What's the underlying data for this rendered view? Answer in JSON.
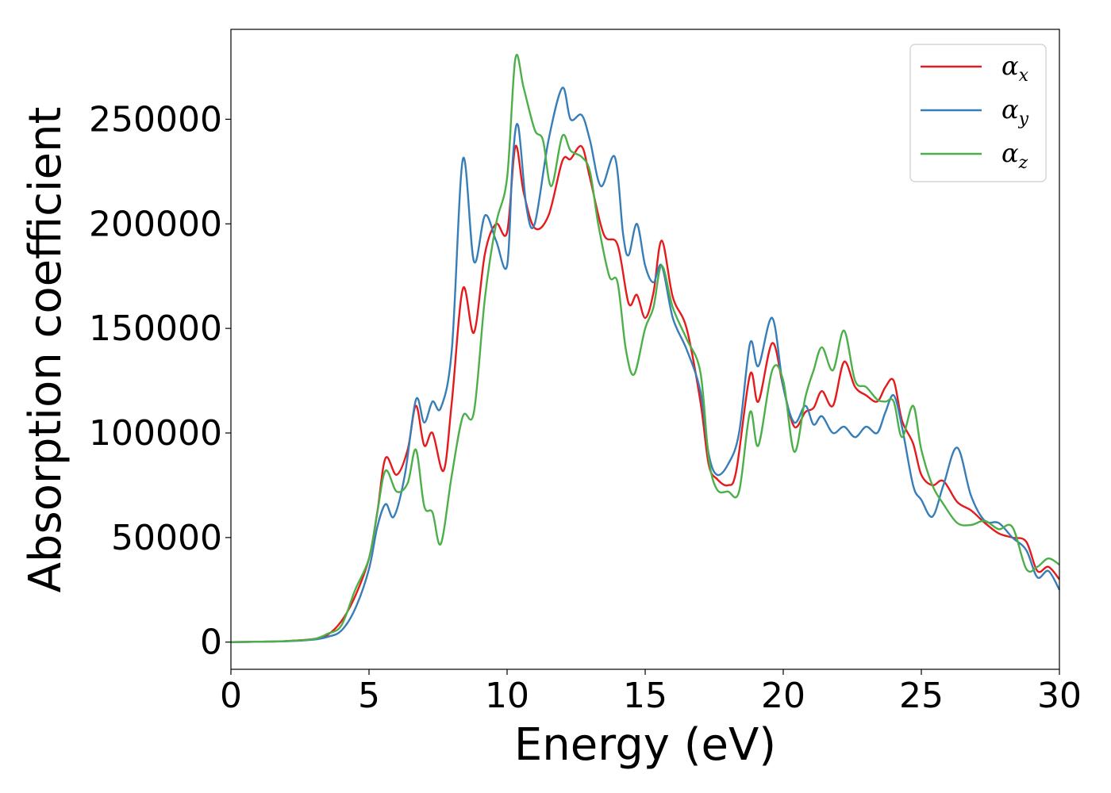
{
  "chart_data": {
    "type": "line",
    "xlabel": "Energy (eV)",
    "ylabel": "Absorption coefficient",
    "xlim": [
      0,
      30
    ],
    "ylim": [
      -13000,
      293000
    ],
    "xticks": [
      0,
      5,
      10,
      15,
      20,
      25,
      30
    ],
    "yticks": [
      0,
      50000,
      100000,
      150000,
      200000,
      250000
    ],
    "grid": false,
    "legend_position": "top-right",
    "series": [
      {
        "name": "α_x",
        "base": "α",
        "sub": "x",
        "color": "#e41a1c",
        "x": [
          0,
          1,
          2,
          3,
          3.5,
          4,
          4.5,
          5,
          5.3,
          5.6,
          6,
          6.4,
          6.7,
          7,
          7.3,
          7.7,
          8,
          8.4,
          8.8,
          9.2,
          9.6,
          10,
          10.3,
          10.6,
          11,
          11.5,
          12,
          12.3,
          12.7,
          13,
          13.5,
          14,
          14.4,
          14.7,
          15,
          15.3,
          15.6,
          16,
          16.5,
          17,
          17.3,
          17.6,
          18,
          18.3,
          18.8,
          19.1,
          19.6,
          20,
          20.4,
          20.8,
          21.1,
          21.4,
          21.8,
          22.2,
          22.6,
          23,
          23.4,
          23.7,
          24,
          24.3,
          24.7,
          25,
          25.4,
          25.8,
          26.3,
          26.8,
          27.3,
          27.8,
          28.3,
          28.8,
          29.2,
          29.6,
          30
        ],
        "y": [
          0,
          200,
          500,
          1500,
          3500,
          10000,
          22000,
          40000,
          62000,
          88000,
          80000,
          92000,
          113000,
          94000,
          100000,
          82000,
          115000,
          169000,
          148000,
          186000,
          200000,
          196000,
          237000,
          215000,
          198000,
          204000,
          230000,
          231000,
          237000,
          222000,
          195000,
          190000,
          162000,
          166000,
          155000,
          167000,
          192000,
          165000,
          150000,
          115000,
          85000,
          78000,
          75000,
          82000,
          128000,
          115000,
          143000,
          122000,
          103000,
          110000,
          112000,
          120000,
          113000,
          134000,
          122000,
          118000,
          115000,
          122000,
          125000,
          106000,
          95000,
          80000,
          75000,
          77000,
          67000,
          63000,
          57000,
          52000,
          50000,
          48000,
          34000,
          36000,
          30000
        ]
      },
      {
        "name": "α_y",
        "base": "α",
        "sub": "y",
        "color": "#377eb8",
        "x": [
          0,
          1,
          2,
          3,
          3.5,
          4,
          4.5,
          5,
          5.3,
          5.6,
          5.9,
          6.3,
          6.7,
          7,
          7.3,
          7.6,
          8,
          8.4,
          8.8,
          9.2,
          9.6,
          10,
          10.2,
          10.4,
          10.7,
          11,
          11.5,
          12,
          12.3,
          12.7,
          13,
          13.4,
          13.9,
          14.2,
          14.4,
          14.7,
          15,
          15.3,
          15.6,
          16,
          16.5,
          17,
          17.3,
          17.6,
          18,
          18.4,
          18.8,
          19.1,
          19.6,
          20,
          20.4,
          20.8,
          21.1,
          21.4,
          21.8,
          22.2,
          22.6,
          23,
          23.4,
          23.7,
          24,
          24.3,
          24.7,
          25,
          25.4,
          25.8,
          26.3,
          26.8,
          27.3,
          27.8,
          28.3,
          28.8,
          29.2,
          29.6,
          30
        ],
        "y": [
          0,
          200,
          400,
          1200,
          2500,
          5500,
          16000,
          35000,
          55000,
          66000,
          60000,
          80000,
          116000,
          105000,
          115000,
          112000,
          140000,
          231000,
          182000,
          204000,
          192000,
          180000,
          230000,
          247000,
          208000,
          200000,
          240000,
          265000,
          250000,
          252000,
          240000,
          218000,
          232000,
          195000,
          185000,
          200000,
          180000,
          172000,
          180000,
          155000,
          140000,
          120000,
          90000,
          80000,
          85000,
          100000,
          143000,
          132000,
          155000,
          122000,
          105000,
          113000,
          104000,
          108000,
          100000,
          103000,
          98000,
          103000,
          100000,
          110000,
          118000,
          103000,
          75000,
          68000,
          60000,
          75000,
          93000,
          70000,
          58000,
          57000,
          50000,
          44000,
          31000,
          34000,
          25000
        ]
      },
      {
        "name": "α_z",
        "base": "α",
        "sub": "z",
        "color": "#4daf4a",
        "x": [
          0,
          1,
          2,
          3,
          3.5,
          4,
          4.5,
          5,
          5.3,
          5.6,
          6,
          6.4,
          6.7,
          7,
          7.3,
          7.6,
          8,
          8.4,
          8.8,
          9.2,
          9.6,
          10,
          10.3,
          10.6,
          11,
          11.3,
          11.6,
          12,
          12.3,
          12.7,
          13,
          13.3,
          13.7,
          14,
          14.3,
          14.6,
          15,
          15.3,
          15.6,
          16,
          16.5,
          17,
          17.3,
          17.6,
          18,
          18.4,
          18.8,
          19.1,
          19.6,
          20,
          20.4,
          20.8,
          21.1,
          21.4,
          21.8,
          22.2,
          22.6,
          23,
          23.4,
          23.7,
          24,
          24.3,
          24.7,
          25,
          25.4,
          25.8,
          26.3,
          26.8,
          27.3,
          27.8,
          28.3,
          28.8,
          29.2,
          29.6,
          30
        ],
        "y": [
          0,
          200,
          500,
          1500,
          4000,
          8000,
          25000,
          40000,
          62000,
          82000,
          72000,
          76000,
          92000,
          65000,
          62000,
          47000,
          80000,
          108000,
          110000,
          165000,
          200000,
          222000,
          279000,
          265000,
          245000,
          240000,
          218000,
          242000,
          235000,
          232000,
          225000,
          200000,
          175000,
          172000,
          140000,
          128000,
          150000,
          160000,
          180000,
          160000,
          145000,
          129000,
          88000,
          73000,
          72000,
          72000,
          110000,
          94000,
          130000,
          125000,
          91000,
          117000,
          130000,
          141000,
          130000,
          149000,
          125000,
          122000,
          116000,
          115000,
          115000,
          98000,
          113000,
          92000,
          75000,
          66000,
          57000,
          56000,
          58000,
          54000,
          55000,
          35000,
          36000,
          40000,
          37000
        ]
      }
    ]
  }
}
